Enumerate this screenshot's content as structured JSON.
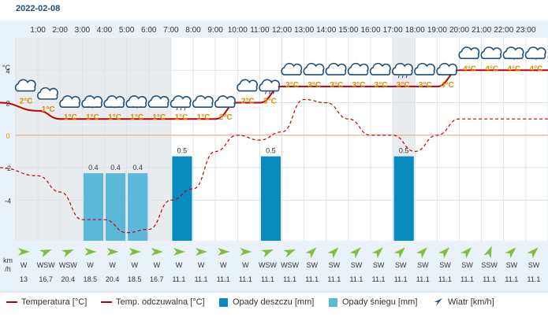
{
  "date": "2022-02-08",
  "colors": {
    "temperature": "#c00000",
    "feels_like": "#c00000",
    "rain": "#0a8bbf",
    "snow": "#5bb8d9",
    "wind": "#1f4e79",
    "accent_text": "#e08a00",
    "axis_bg": "#e8f2f8",
    "night_bg": "#e9ecef",
    "wind_arrow": "#7fbf40"
  },
  "y_axis_unit": "°C",
  "wind_axis_unit": [
    "km",
    "/h"
  ],
  "chart_data": {
    "type": "line",
    "hours": [
      "1:00",
      "2:00",
      "3:00",
      "4:00",
      "5:00",
      "6:00",
      "7:00",
      "8:00",
      "9:00",
      "10:00",
      "11:00",
      "12:00",
      "13:00",
      "14:00",
      "15:00",
      "16:00",
      "17:00",
      "18:00",
      "19:00",
      "20:00",
      "21:00",
      "22:00",
      "23:00"
    ],
    "y_ticks": [
      4,
      2,
      0,
      -2,
      -4
    ],
    "ylim": [
      -6.5,
      6
    ],
    "x_points": [
      "0:00",
      "1:00",
      "2:00",
      "3:00",
      "4:00",
      "5:00",
      "6:00",
      "7:00",
      "8:00",
      "9:00",
      "10:00",
      "11:00",
      "12:00",
      "13:00",
      "14:00",
      "15:00",
      "16:00",
      "17:00",
      "18:00",
      "19:00",
      "20:00",
      "21:00",
      "22:00",
      "23:00",
      "24:00"
    ],
    "series": [
      {
        "name": "Temperatura [°C]",
        "values": [
          2,
          1.5,
          1,
          1,
          1,
          1,
          1,
          1,
          1,
          1,
          2,
          2,
          3,
          3,
          3,
          3,
          3,
          3,
          3,
          3,
          4,
          4,
          4,
          4,
          4
        ]
      },
      {
        "name": "Temp. odczuwalna [°C]",
        "values": [
          -2,
          -2.5,
          -3.5,
          -5.2,
          -5.2,
          -6,
          -5.8,
          -4,
          -3.3,
          -1,
          0,
          -0.3,
          0.2,
          2.2,
          2,
          1,
          0,
          0,
          -1,
          0,
          1,
          1,
          1,
          1,
          1
        ]
      }
    ],
    "temperature_labels": [
      "2°C",
      "1°C",
      "1°C",
      "1°C",
      "1°C",
      "1°C",
      "1°C",
      "1°C",
      "1°C",
      "2°C",
      "2°C",
      "3°C",
      "3°C",
      "3°C",
      "3°C",
      "3°C",
      "3°C",
      "3°C",
      "3°C",
      "4°C",
      "4°C",
      "4°C",
      "4°C",
      "4°C"
    ],
    "weather_icons": [
      "cloud-icon",
      "cloud-icon",
      "cloud-icon",
      "cloud-snow-icon",
      "cloud-snow-icon",
      "cloud-snow-icon",
      "cloud-icon",
      "cloud-rain-icon",
      "cloud-icon",
      "cloud-icon",
      "cloud-icon",
      "cloud-rain-icon",
      "cloud-icon",
      "cloud-icon",
      "cloud-icon",
      "cloud-icon",
      "cloud-icon",
      "cloud-rain-icon",
      "cloud-icon",
      "cloud-icon",
      "cloud-icon",
      "cloud-icon",
      "cloud-snow-icon",
      "cloud-snow-icon"
    ],
    "precipitation": [
      {
        "hour": 4,
        "type": "snow",
        "value": 0.4,
        "label": "0.4"
      },
      {
        "hour": 5,
        "type": "snow",
        "value": 0.4,
        "label": "0.4"
      },
      {
        "hour": 6,
        "type": "snow",
        "value": 0.4,
        "label": "0.4"
      },
      {
        "hour": 8,
        "type": "rain",
        "value": 0.5,
        "label": "0.5"
      },
      {
        "hour": 12,
        "type": "rain",
        "value": 0.5,
        "label": "0.5"
      },
      {
        "hour": 18,
        "type": "rain",
        "value": 0.5,
        "label": "0.5"
      }
    ],
    "wind_direction": [
      "W",
      "WSW",
      "WSW",
      "W",
      "W",
      "W",
      "W",
      "W",
      "W",
      "W",
      "W",
      "WSW",
      "WSW",
      "SW",
      "SW",
      "SW",
      "SW",
      "SW",
      "SW",
      "SW",
      "SW",
      "SSW",
      "SW",
      "SW"
    ],
    "wind_speed": [
      "13",
      "16.7",
      "20.4",
      "18.5",
      "20.4",
      "18.5",
      "16.7",
      "11.1",
      "11.1",
      "11.1",
      "11.1",
      "11.1",
      "11.1",
      "11.1",
      "11.1",
      "11.1",
      "11.1",
      "11.1",
      "11.1",
      "11.1",
      "11.1",
      "11.1",
      "11.1",
      "11.1"
    ],
    "night_hours": [
      [
        0,
        7
      ],
      [
        17,
        18
      ]
    ],
    "grid": true
  },
  "legend": {
    "temperature": "Temperatura [°C]",
    "feels_like": "Temp. odczuwalna [°C]",
    "rain": "Opady deszczu [mm]",
    "snow": "Opady śniegu [mm]",
    "wind": "Wiatr [km/h]"
  }
}
